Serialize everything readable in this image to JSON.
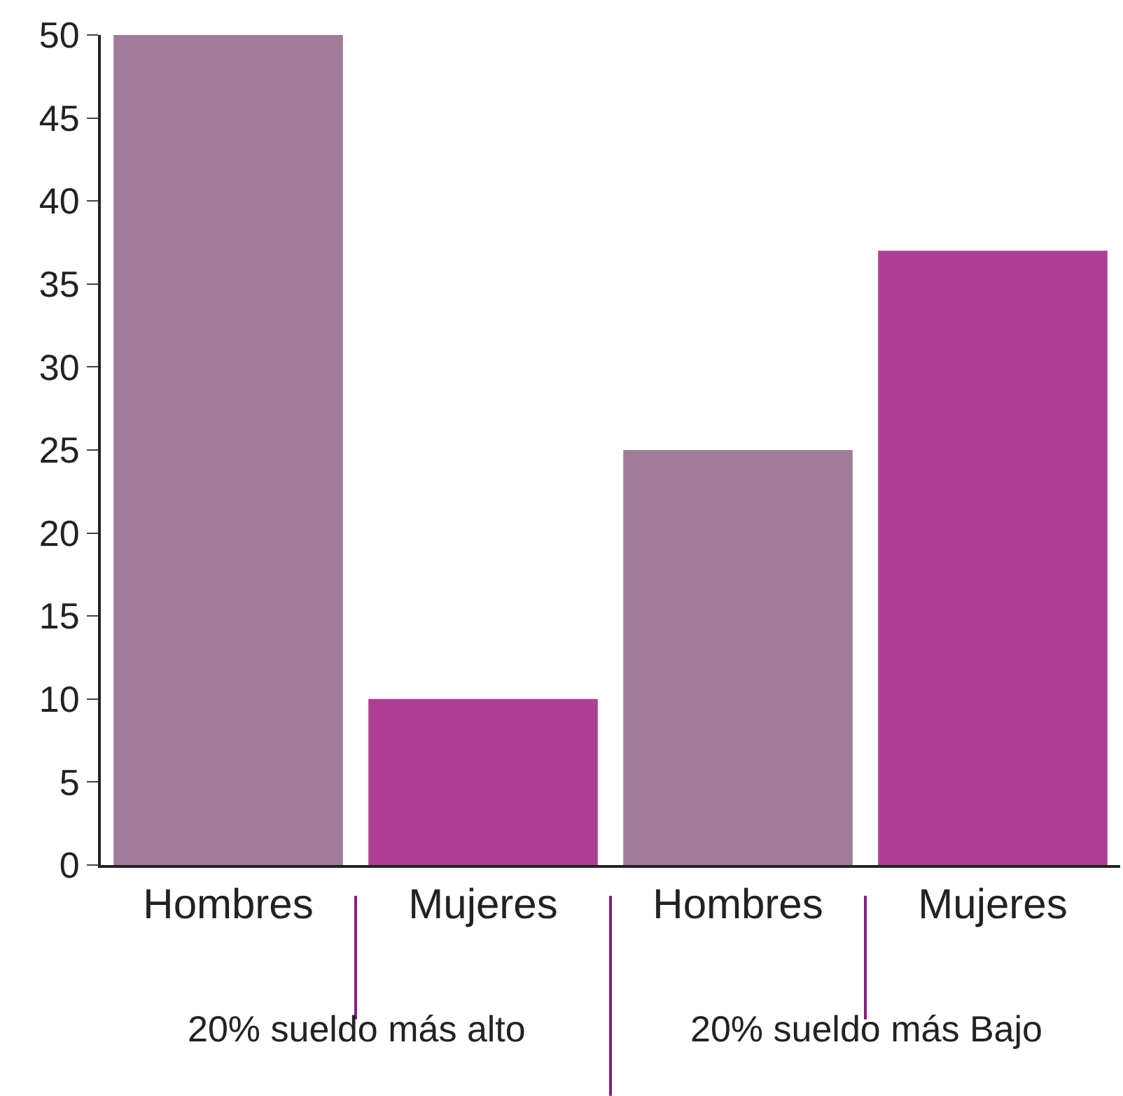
{
  "chart_data": {
    "type": "bar",
    "categories": [
      "Hombres",
      "Mujeres",
      "Hombres",
      "Mujeres"
    ],
    "values": [
      50,
      10,
      25,
      37
    ],
    "colors": [
      "#a07b9a",
      "#ae3e93",
      "#a07b9a",
      "#ae3e93"
    ],
    "ylim": [
      0,
      50
    ],
    "yticks": [
      0,
      5,
      10,
      15,
      20,
      25,
      30,
      35,
      40,
      45,
      50
    ],
    "annotations": [
      "20% sueldo más alto",
      "20% sueldo más Bajo"
    ]
  }
}
